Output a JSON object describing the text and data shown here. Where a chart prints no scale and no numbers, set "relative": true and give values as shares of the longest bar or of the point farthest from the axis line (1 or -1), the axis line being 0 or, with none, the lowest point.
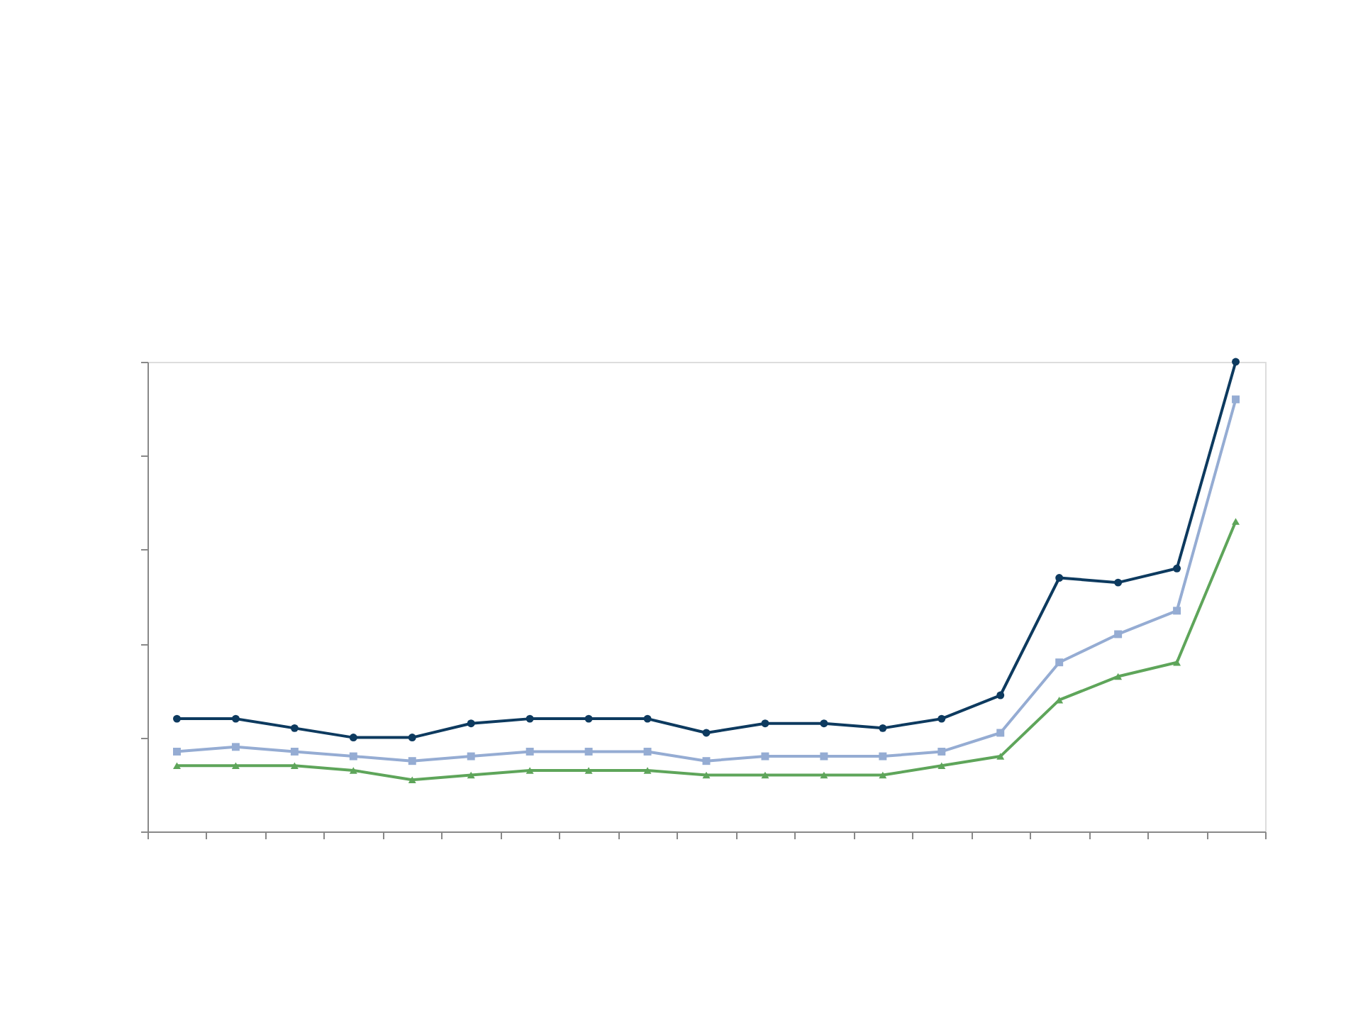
{
  "chart_data": {
    "type": "line",
    "relative": true,
    "grid": false,
    "tick_labels": false,
    "line_style": "solid",
    "categories": [
      null,
      null,
      null,
      null,
      null,
      null,
      null,
      null,
      null,
      null,
      null,
      null,
      null,
      null,
      null,
      null,
      null,
      null,
      null
    ],
    "series": [
      {
        "color": "#0d3a5f",
        "marker": "circle",
        "values": [
          0.24,
          0.24,
          0.22,
          0.2,
          0.2,
          0.23,
          0.24,
          0.24,
          0.24,
          0.21,
          0.23,
          0.23,
          0.22,
          0.24,
          0.29,
          0.54,
          0.53,
          0.56,
          1
        ]
      },
      {
        "color": "#95acd3",
        "marker": "square",
        "values": [
          0.17,
          0.18,
          0.17,
          0.16,
          0.15,
          0.16,
          0.17,
          0.17,
          0.17,
          0.15,
          0.16,
          0.16,
          0.16,
          0.17,
          0.21,
          0.36,
          0.42,
          0.47,
          0.92
        ]
      },
      {
        "color": "#5ea55a",
        "marker": "triangle",
        "values": [
          0.14,
          0.14,
          0.14,
          0.13,
          0.11,
          0.12,
          0.13,
          0.13,
          0.13,
          0.12,
          0.12,
          0.12,
          0.12,
          0.14,
          0.16,
          0.28,
          0.33,
          0.36,
          0.66
        ]
      }
    ]
  }
}
